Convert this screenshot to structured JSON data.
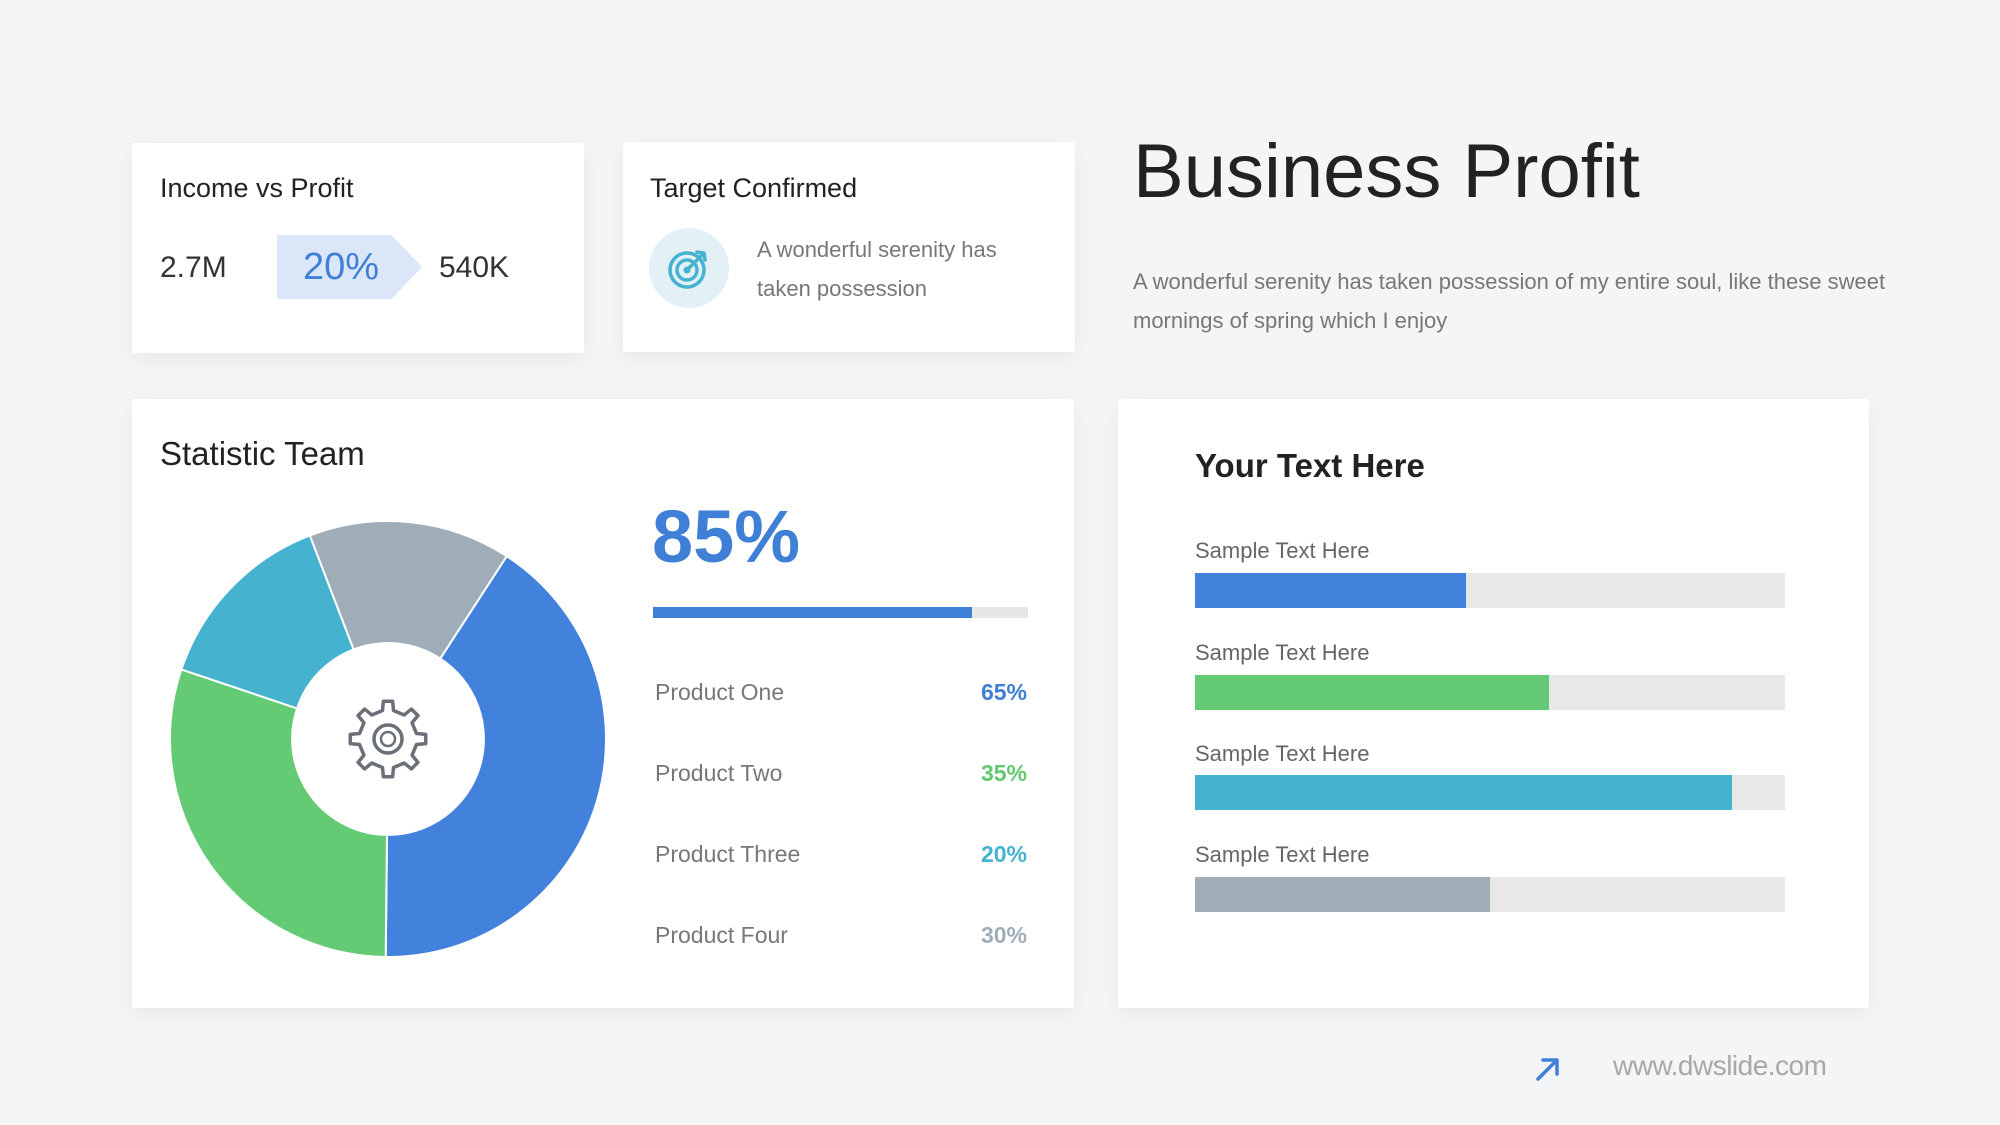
{
  "header": {
    "title": "Business Profit",
    "subtitle": "A wonderful serenity has taken possession of my entire soul, like these sweet mornings of spring which I enjoy"
  },
  "income_card": {
    "title": "Income vs Profit",
    "left_value": "2.7M",
    "percent": "20%",
    "right_value": "540K"
  },
  "target_card": {
    "title": "Target Confirmed",
    "icon": "target-icon",
    "text": "A wonderful serenity has taken possession",
    "accent": "#45b3d0"
  },
  "stat_card": {
    "title": "Statistic Team",
    "center_icon": "gear-icon",
    "big_percent": "85%",
    "products": [
      {
        "label": "Product One",
        "value": "65%",
        "color": "#3f7fd6"
      },
      {
        "label": "Product Two",
        "value": "35%",
        "color": "#62c86f"
      },
      {
        "label": "Product Three",
        "value": "20%",
        "color": "#45b3d0"
      },
      {
        "label": "Product Four",
        "value": "30%",
        "color": "#9fadb8"
      }
    ]
  },
  "text_card": {
    "title": "Your Text Here"
  },
  "footer": {
    "icon": "arrow-up-right-icon",
    "url": "www.dwslide.com"
  },
  "chart_data": [
    {
      "type": "pie",
      "values": [
        41,
        30,
        14,
        15
      ],
      "colors": [
        "#4281dc",
        "#64cb74",
        "#45b3d0",
        "#9fadb8"
      ],
      "start_angle_deg": 33,
      "inner_radius_ratio": 0.44
    },
    {
      "type": "bar",
      "orientation": "horizontal",
      "values": [
        85
      ],
      "max": 100,
      "colors": [
        "#3f7fd6"
      ]
    },
    {
      "type": "bar",
      "orientation": "horizontal",
      "categories": [
        "Sample Text Here",
        "Sample Text Here",
        "Sample Text Here",
        "Sample Text Here"
      ],
      "values": [
        46,
        60,
        91,
        50
      ],
      "max": 100,
      "colors": [
        "#4281dc",
        "#64cb74",
        "#45b3d0",
        "#9fadb8"
      ]
    }
  ]
}
